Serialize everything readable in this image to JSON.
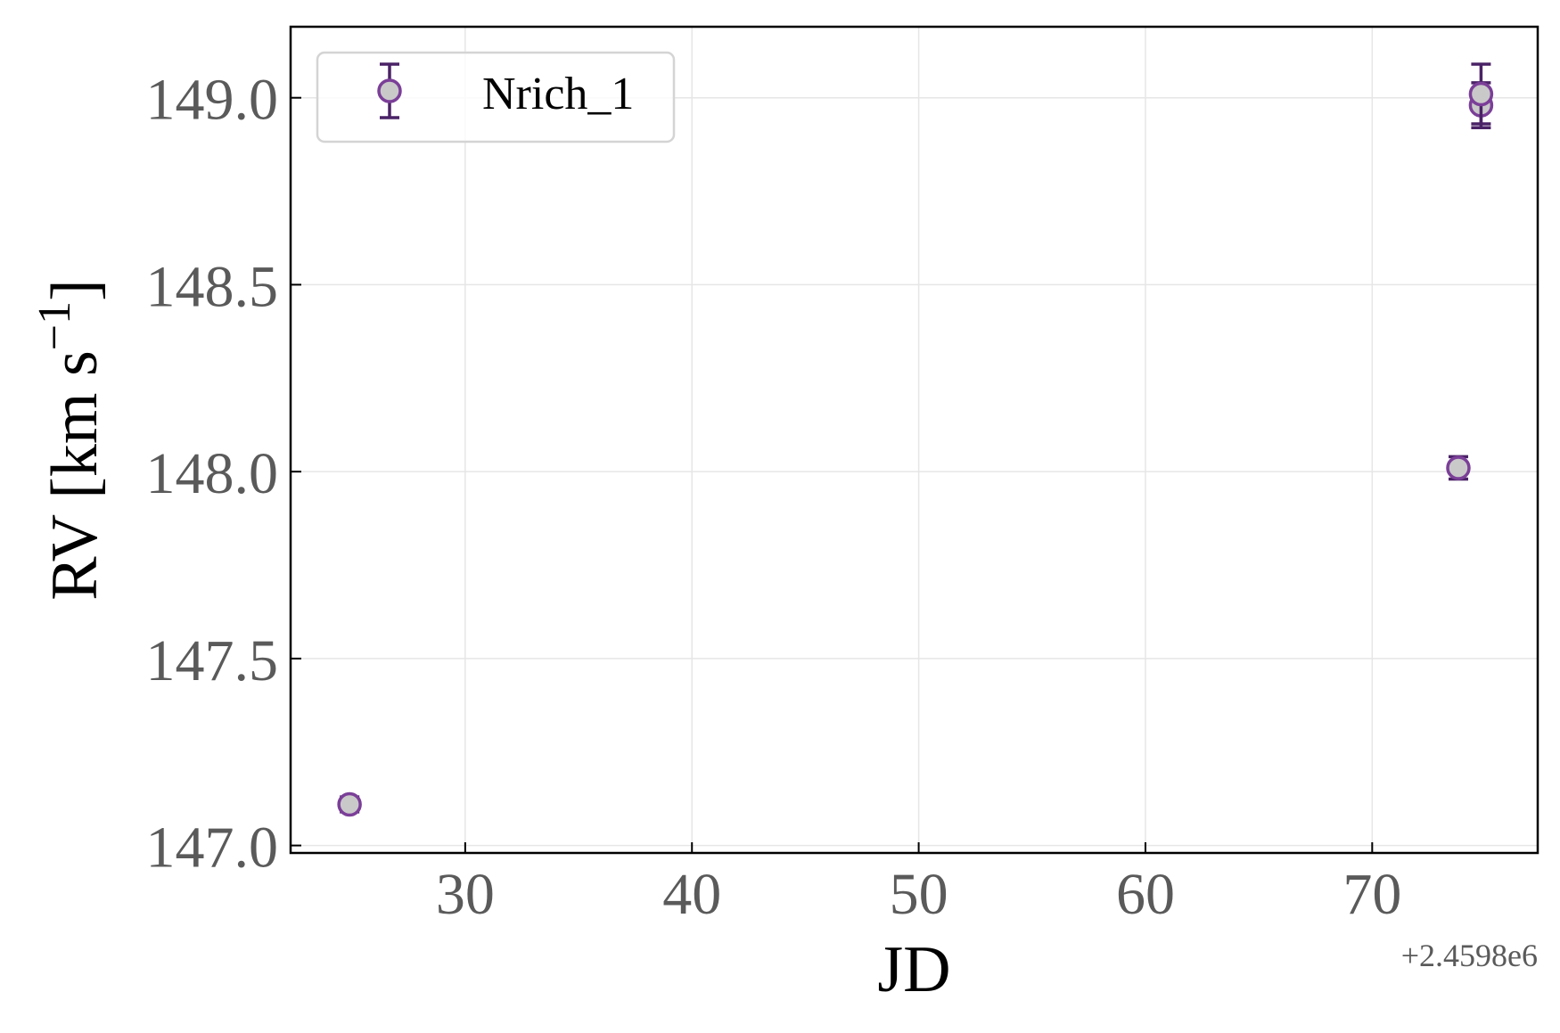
{
  "chart_data": {
    "type": "scatter",
    "title": "",
    "xlabel": "JD",
    "ylabel": "RV [km s",
    "ylabel_sup": "−1",
    "ylabel_close": "]",
    "x_offset_label": "+2.4598e6",
    "xlim": [
      22.3,
      77.3
    ],
    "ylim": [
      146.98,
      149.19
    ],
    "x_ticks": [
      30,
      40,
      50,
      60,
      70
    ],
    "x_tick_labels": [
      "30",
      "40",
      "50",
      "60",
      "70"
    ],
    "y_ticks": [
      147.0,
      147.5,
      148.0,
      148.5,
      149.0
    ],
    "y_tick_labels": [
      "147.0",
      "147.5",
      "148.0",
      "148.5",
      "149.0"
    ],
    "grid": true,
    "legend_position": "top-left",
    "series": [
      {
        "name": "Nrich_1",
        "x": [
          24.9,
          73.8,
          74.8,
          74.8
        ],
        "y": [
          147.11,
          148.01,
          148.98,
          149.01
        ],
        "yerr": [
          0.02,
          0.03,
          0.06,
          0.08
        ]
      }
    ],
    "colors": {
      "marker_fill": "#c9c9c9",
      "marker_edge": "#7b3f98",
      "errorbar": "#4a2266",
      "grid": "#e6e6e6",
      "axis": "#000000"
    }
  }
}
